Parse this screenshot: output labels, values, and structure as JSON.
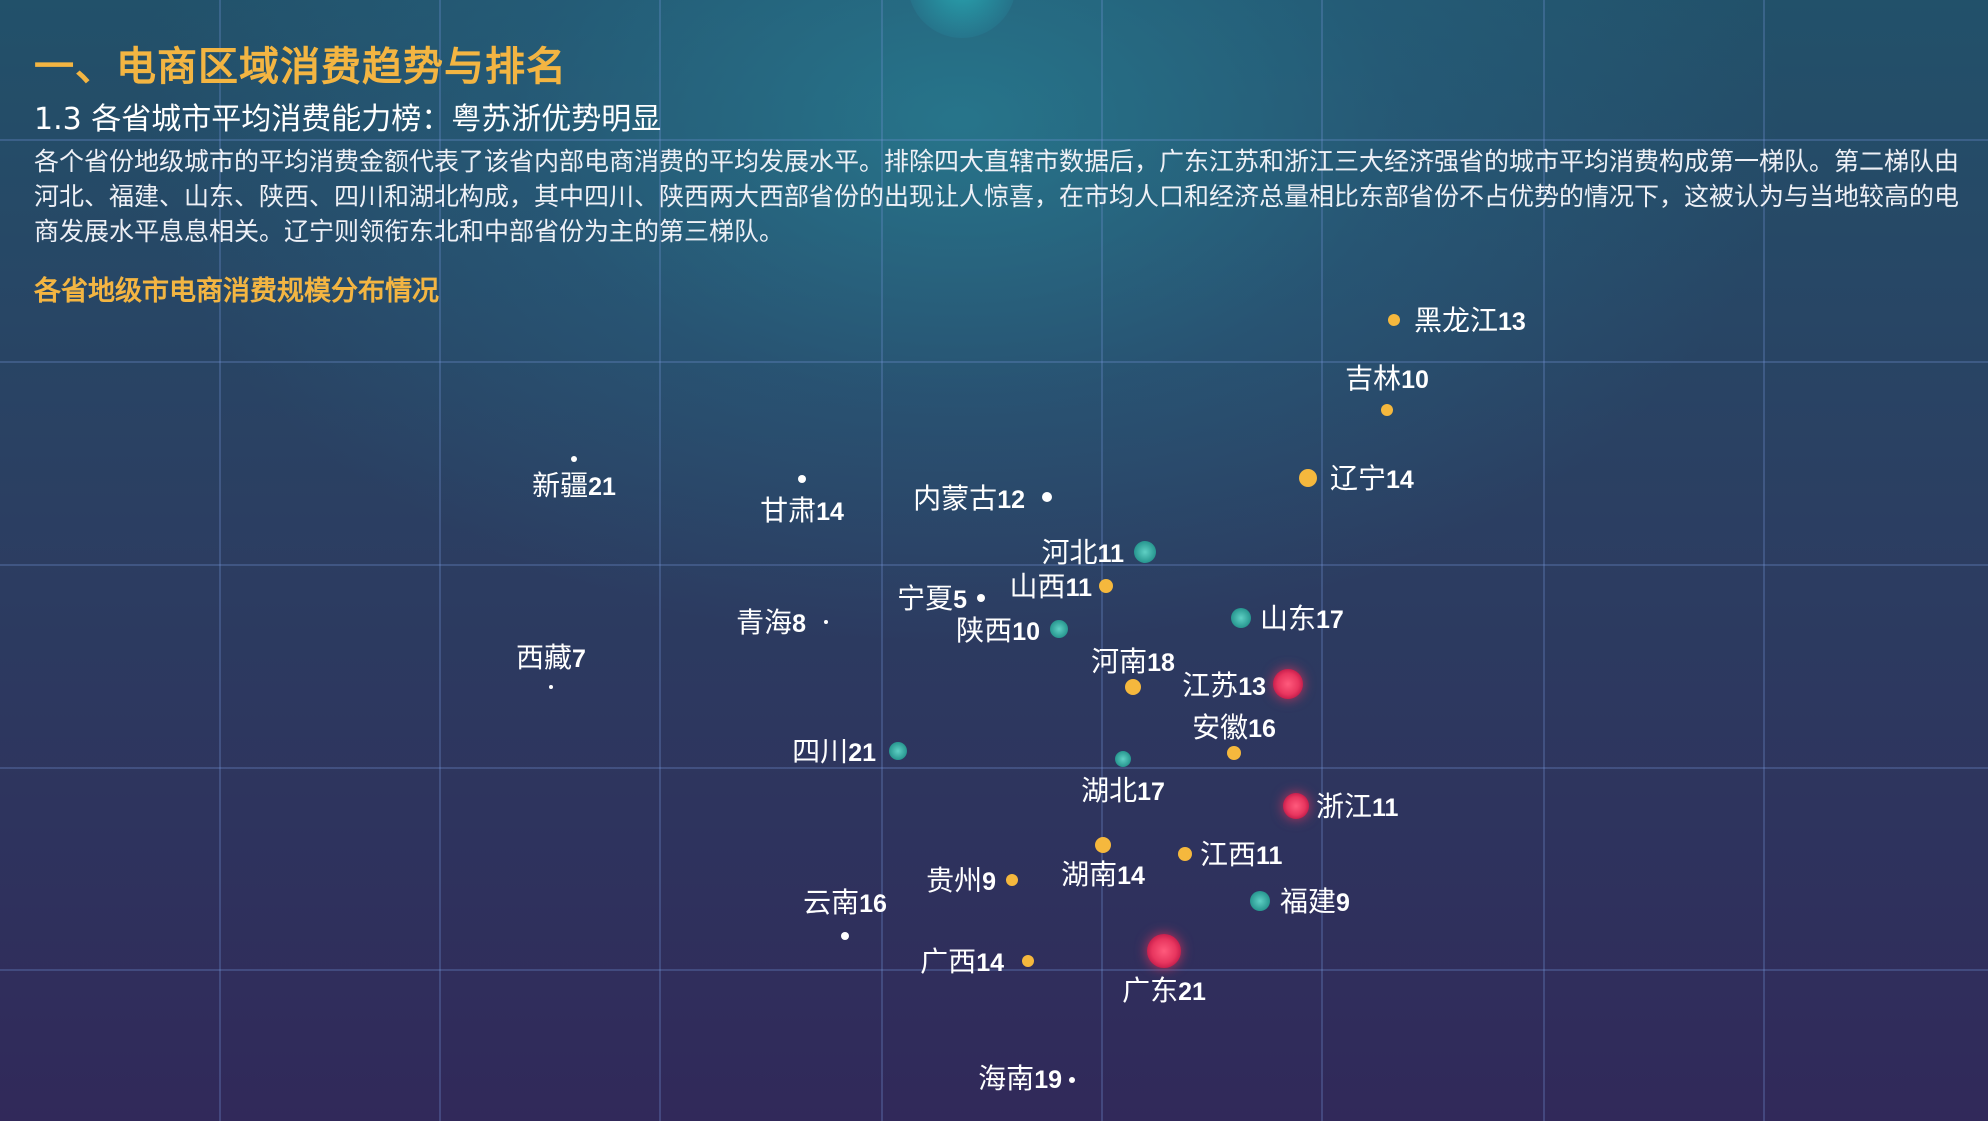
{
  "header": {
    "title": "一、电商区域消费趋势与排名",
    "subtitle": "1.3 各省城市平均消费能力榜：粤苏浙优势明显",
    "paragraph": "各个省份地级城市的平均消费金额代表了该省内部电商消费的平均发展水平。排除四大直辖市数据后，广东江苏和浙江三大经济强省的城市平均消费构成第一梯队。第二梯队由河北、福建、山东、陕西、四川和湖北构成，其中四川、陕西两大西部省份的出现让人惊喜，在市均人口和经济总量相比东部省份不占优势的情况下，这被认为与当地较高的电商发展水平息息相关。辽宁则领衔东北和中部省份为主的第三梯队。"
  },
  "chart_title": "各省地级市电商消费规模分布情况",
  "colors": {
    "tier1": "#e8365f",
    "tier2": "#2fa7a0",
    "tier3": "#f5b83d",
    "tier4": "#ffffff",
    "accent": "#f3b542"
  },
  "chart_data": {
    "type": "scatter",
    "title": "各省地级市电商消费规模分布情况",
    "points": [
      {
        "name": "黑龙江",
        "count": "13",
        "tier": 3
      },
      {
        "name": "吉林",
        "count": "10",
        "tier": 3
      },
      {
        "name": "辽宁",
        "count": "14",
        "tier": 3
      },
      {
        "name": "新疆",
        "count": "21",
        "tier": 4
      },
      {
        "name": "甘肃",
        "count": "14",
        "tier": 4
      },
      {
        "name": "内蒙古",
        "count": "12",
        "tier": 4
      },
      {
        "name": "河北",
        "count": "11",
        "tier": 2
      },
      {
        "name": "山西",
        "count": "11",
        "tier": 3
      },
      {
        "name": "宁夏",
        "count": "5",
        "tier": 4
      },
      {
        "name": "青海",
        "count": "8",
        "tier": 4
      },
      {
        "name": "陕西",
        "count": "10",
        "tier": 2
      },
      {
        "name": "山东",
        "count": "17",
        "tier": 2
      },
      {
        "name": "西藏",
        "count": "7",
        "tier": 4
      },
      {
        "name": "河南",
        "count": "18",
        "tier": 3
      },
      {
        "name": "江苏",
        "count": "13",
        "tier": 1
      },
      {
        "name": "安徽",
        "count": "16",
        "tier": 3
      },
      {
        "name": "四川",
        "count": "21",
        "tier": 2
      },
      {
        "name": "湖北",
        "count": "17",
        "tier": 2
      },
      {
        "name": "浙江",
        "count": "11",
        "tier": 1
      },
      {
        "name": "江西",
        "count": "11",
        "tier": 3
      },
      {
        "name": "湖南",
        "count": "14",
        "tier": 3
      },
      {
        "name": "贵州",
        "count": "9",
        "tier": 3
      },
      {
        "name": "福建",
        "count": "9",
        "tier": 2
      },
      {
        "name": "云南",
        "count": "16",
        "tier": 4
      },
      {
        "name": "广西",
        "count": "14",
        "tier": 3
      },
      {
        "name": "广东",
        "count": "21",
        "tier": 1
      },
      {
        "name": "海南",
        "count": "19",
        "tier": 4
      }
    ]
  }
}
